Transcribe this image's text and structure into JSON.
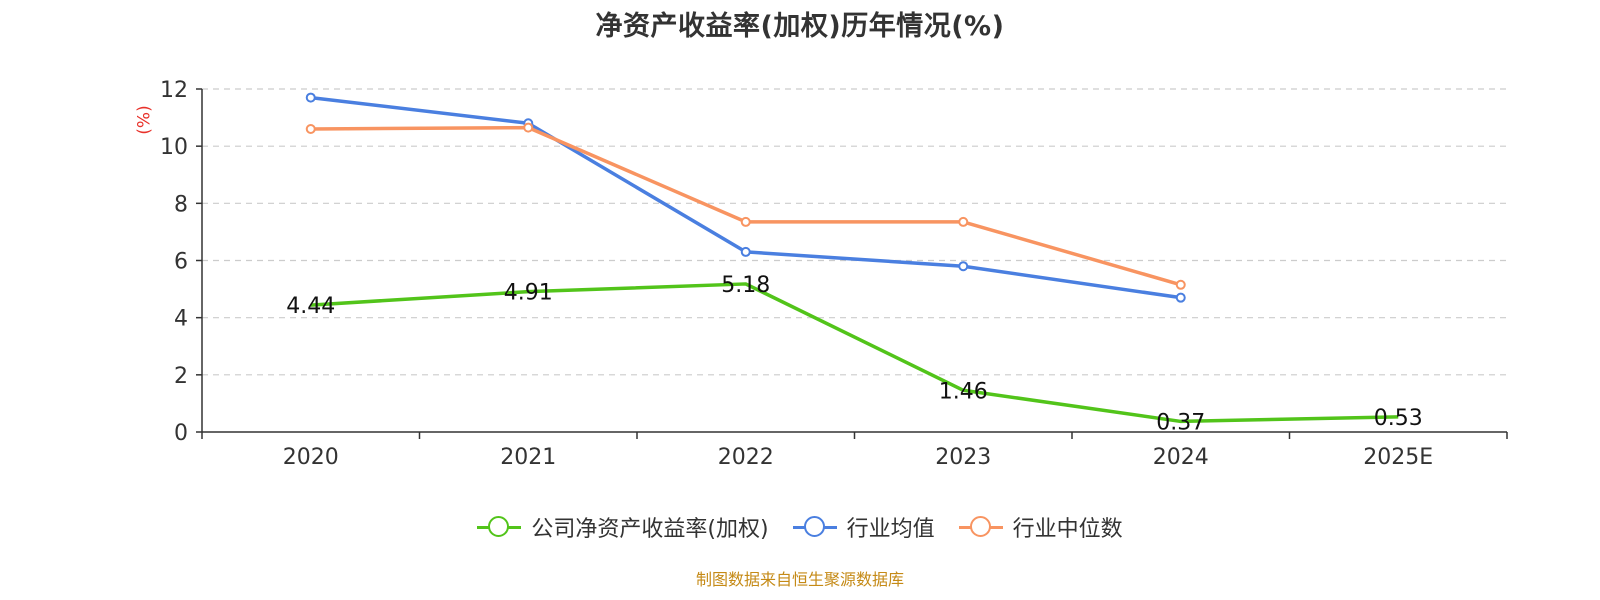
{
  "chart_data": {
    "type": "line",
    "title": "净资产收益率(加权)历年情况(%)",
    "ylabel": "(%)",
    "xlabel": "",
    "categories": [
      "2020",
      "2021",
      "2022",
      "2023",
      "2024",
      "2025E"
    ],
    "ylim": [
      0,
      12
    ],
    "yticks": [
      0,
      2,
      4,
      6,
      8,
      10,
      12
    ],
    "grid": true,
    "legend_position": "bottom",
    "series": [
      {
        "name": "公司净资产收益率(加权)",
        "color": "#52c41a",
        "values": [
          4.44,
          4.91,
          5.18,
          1.46,
          0.37,
          0.53
        ],
        "labels": [
          "4.44",
          "4.91",
          "5.18",
          "1.46",
          "0.37",
          "0.53"
        ]
      },
      {
        "name": "行业均值",
        "color": "#4a7fe0",
        "values": [
          11.7,
          10.8,
          6.3,
          5.8,
          4.7,
          null
        ]
      },
      {
        "name": "行业中位数",
        "color": "#f89461",
        "values": [
          10.6,
          10.65,
          7.35,
          7.35,
          5.15,
          null
        ]
      }
    ]
  },
  "source_note": "制图数据来自恒生聚源数据库"
}
